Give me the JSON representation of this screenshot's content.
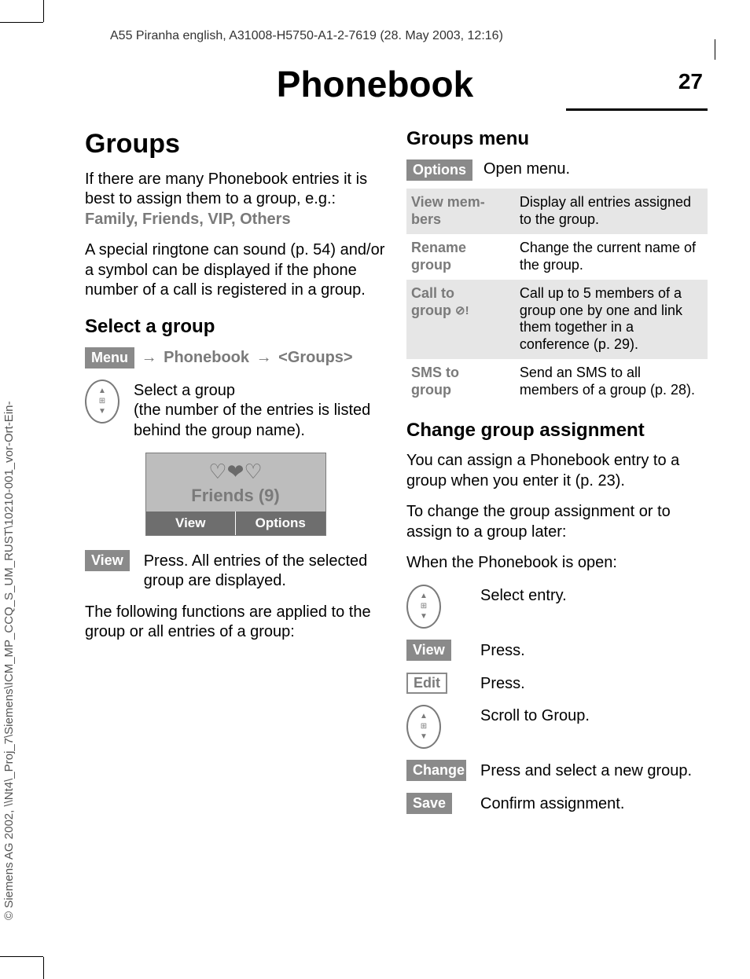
{
  "header": "A55 Piranha english, A31008-H5750-A1-2-7619 (28. May 2003, 12:16)",
  "sideText": "© Siemens AG 2002, \\\\Nt4\\_Proj_7\\Siemens\\ICM_MP_CCQ_S_UM_RUST\\10210-001_vor-Ort-Ein-",
  "pageTitle": "Phonebook",
  "pageNum": "27",
  "left": {
    "h1": "Groups",
    "p1a": "If there are many Phonebook entries it is best to assign them to a group, e.g.: ",
    "p1b": "Family, Friends, VIP, Others",
    "p2": "A special ringtone can sound (p. 54) and/or a symbol can be displayed if the phone number of a call is registered in a group.",
    "h2a": "Select a group",
    "menuLabel": "Menu",
    "navPb": "Phonebook",
    "navGroups": "<Groups>",
    "selectGroup": "Select a group\n(the number of the entries is listed behind the group name).",
    "screenLabel": "Friends (9)",
    "screenLeft": "View",
    "screenRight": "Options",
    "viewPill": "View",
    "viewText": "Press. All entries of the selected group are displayed.",
    "p3": "The following functions are applied to the group or all entries of a group:"
  },
  "right": {
    "h2a": "Groups menu",
    "optionsPill": "Options",
    "openMenu": "Open menu.",
    "table": [
      {
        "l1": "View mem-",
        "l2": "bers",
        "r": "Display all entries assigned to the group."
      },
      {
        "l1": "Rename",
        "l2": "group",
        "r": "Change the current name of the group."
      },
      {
        "l1": "Call to",
        "l2": "group",
        "tail": "!",
        "r": "Call up to 5 members of a group one by one and link them together in a conference (p. 29)."
      },
      {
        "l1": "SMS to",
        "l2": "group",
        "r": "Send an SMS to all members of a group (p. 28)."
      }
    ],
    "h2b": "Change group assignment",
    "p1": "You can assign a Phonebook entry to a group when you enter it (p. 23).",
    "p2": "To change the group assignment or to assign to a group later:",
    "p3": "When the Phonebook is open:",
    "steps": [
      {
        "kind": "circle",
        "text": "Select entry."
      },
      {
        "kind": "pill",
        "label": "View",
        "text": "Press."
      },
      {
        "kind": "outline",
        "label": "Edit",
        "text": "Press."
      },
      {
        "kind": "circle",
        "text": "Scroll to Group."
      },
      {
        "kind": "pill",
        "label": "Change",
        "text": "Press and select a new group."
      },
      {
        "kind": "pill",
        "label": "Save",
        "text": "Confirm assignment."
      }
    ]
  }
}
